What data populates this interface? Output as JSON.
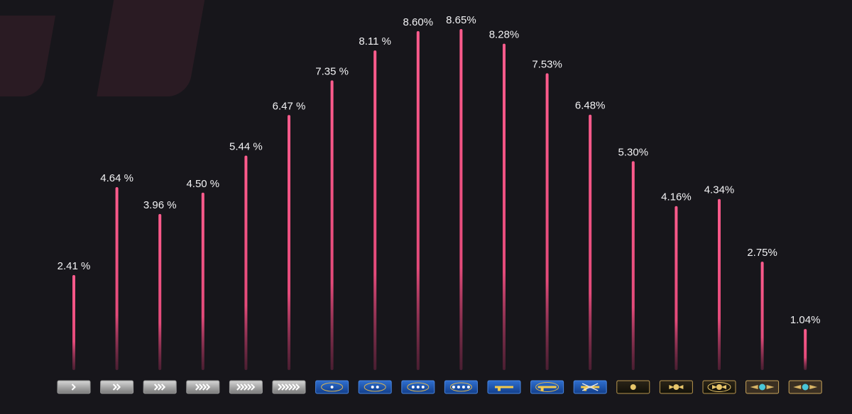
{
  "chart_data": {
    "type": "bar",
    "categories": [
      "Silver I",
      "Silver II",
      "Silver III",
      "Silver IV",
      "Silver Elite",
      "Silver Elite Master",
      "Gold Nova I",
      "Gold Nova II",
      "Gold Nova III",
      "Gold Nova Master",
      "Master Guardian I",
      "Master Guardian II",
      "Master Guardian Elite",
      "Distinguished Master Guardian",
      "Legendary Eagle",
      "Legendary Eagle Master",
      "Supreme Master First Class",
      "The Global Elite"
    ],
    "values": [
      2.41,
      4.64,
      3.96,
      4.5,
      5.44,
      6.47,
      7.35,
      8.11,
      8.6,
      8.65,
      8.28,
      7.53,
      6.48,
      5.3,
      4.16,
      4.34,
      2.75,
      1.04
    ],
    "data_labels": [
      "2.41 %",
      "4.64 %",
      "3.96 %",
      "4.50 %",
      "5.44 %",
      "6.47 %",
      "7.35 %",
      "8.11 %",
      "8.60%",
      "8.65%",
      "8.28%",
      "7.53%",
      "6.48%",
      "5.30%",
      "4.16%",
      "4.34%",
      "2.75%",
      "1.04%"
    ],
    "icons": [
      "silver-rank-icon",
      "silver-rank-icon",
      "silver-rank-icon",
      "silver-rank-icon",
      "silver-rank-icon",
      "silver-rank-icon",
      "gold-nova-rank-icon",
      "gold-nova-rank-icon",
      "gold-nova-rank-icon",
      "gold-nova-rank-icon",
      "master-guardian-rank-icon",
      "master-guardian-rank-icon",
      "master-guardian-rank-icon",
      "distinguished-master-guardian-rank-icon",
      "legendary-eagle-rank-icon",
      "legendary-eagle-rank-icon",
      "supreme-rank-icon",
      "global-elite-rank-icon"
    ],
    "title": "",
    "xlabel": "",
    "ylabel": "",
    "ylim": [
      0,
      9.5
    ],
    "grid": false,
    "colors": {
      "bar": "#ff5c8d",
      "label": "#f2f2f4",
      "background": "#17161b"
    }
  }
}
